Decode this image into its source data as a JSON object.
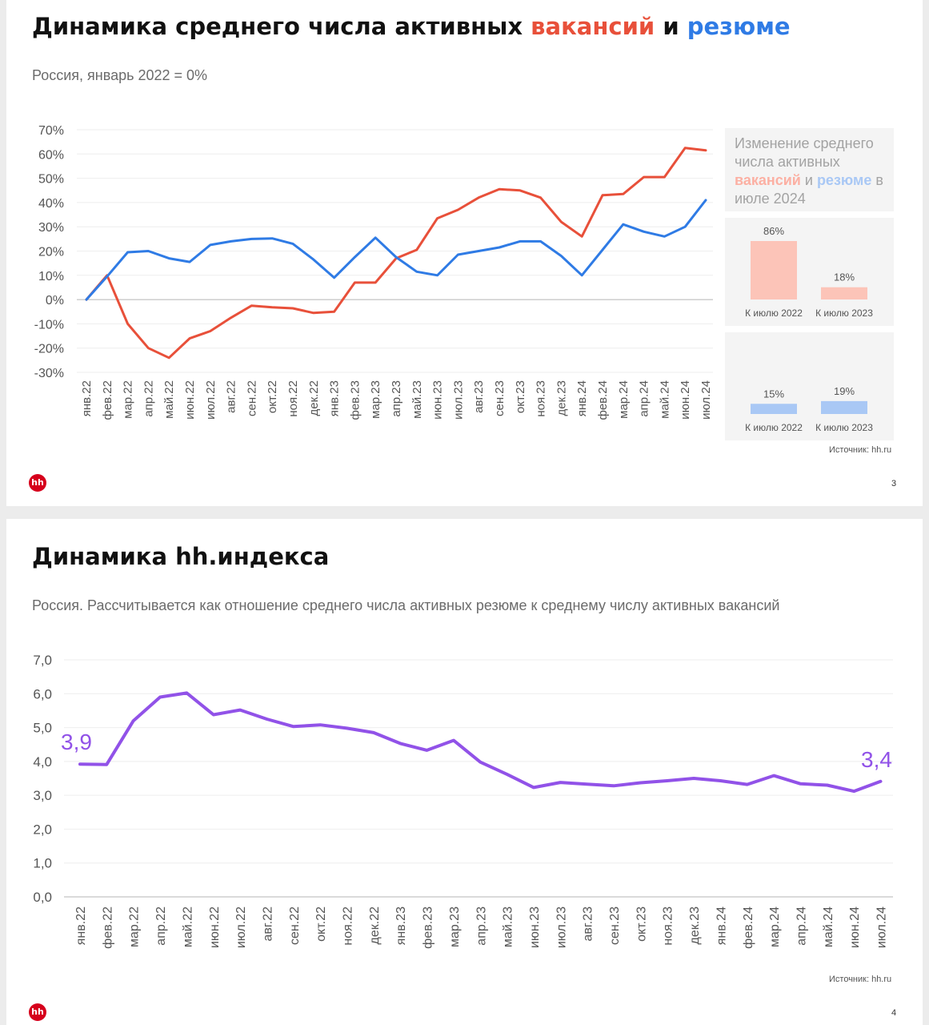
{
  "slide1": {
    "title_prefix": "Динамика среднего числа активных ",
    "title_vacancies": "вакансий",
    "title_and": " и ",
    "title_resumes": "резюме",
    "subtitle": "Россия, январь 2022 = 0%",
    "side_heading_line1": "Изменение среднего числа активных",
    "side_heading_vacancies": "вакансий",
    "side_heading_and": " и ",
    "side_heading_resumes": "резюме",
    "side_heading_line2": "в июле 2024",
    "source": "Источник: hh.ru",
    "page_number": "3",
    "logo": "hh"
  },
  "slide2": {
    "title": "Динамика hh.индекса",
    "subtitle": "Россия. Рассчитывается как отношение среднего числа активных резюме к среднему числу активных вакансий",
    "source": "Источник: hh.ru",
    "page_number": "4",
    "logo": "hh"
  },
  "colors": {
    "vacancies": "#e8503a",
    "resumes": "#2f7be5",
    "index": "#9152e8",
    "vacancies_light": "#fcc4b8",
    "resumes_light": "#a9c8f5"
  },
  "chart_data": [
    {
      "type": "line",
      "categories": [
        "янв.22",
        "фев.22",
        "мар.22",
        "апр.22",
        "май.22",
        "июн.22",
        "июл.22",
        "авг.22",
        "сен.22",
        "окт.22",
        "ноя.22",
        "дек.22",
        "янв.23",
        "фев.23",
        "мар.23",
        "апр.23",
        "май.23",
        "июн.23",
        "июл.23",
        "авг.23",
        "сен.23",
        "окт.23",
        "ноя.23",
        "дек.23",
        "янв.24",
        "фев.24",
        "мар.24",
        "апр.24",
        "май.24",
        "июн.24",
        "июл.24"
      ],
      "series": [
        {
          "name": "вакансий",
          "color": "#e8503a",
          "values": [
            0,
            10,
            -10,
            -20,
            -24,
            -16,
            -13,
            -7.5,
            -2.5,
            -3.2,
            -3.6,
            -5.5,
            -5,
            7,
            7,
            17,
            20.5,
            33.5,
            37,
            42,
            45.5,
            45,
            42,
            32,
            26,
            43,
            43.5,
            50.5,
            50.5,
            62.5,
            61.5
          ]
        },
        {
          "name": "резюме",
          "color": "#2f7be5",
          "values": [
            0,
            9.5,
            19.5,
            20,
            17,
            15.5,
            22.5,
            24,
            25,
            25.2,
            23,
            16.5,
            9,
            17.5,
            25.5,
            17.5,
            11.5,
            10,
            18.5,
            20,
            21.5,
            24,
            24,
            18,
            10,
            20.5,
            31,
            28,
            26,
            30,
            41
          ]
        }
      ],
      "y_tick_labels": [
        "70%",
        "60%",
        "50%",
        "40%",
        "30%",
        "20%",
        "10%",
        "0%",
        "-10%",
        "-20%",
        "-30%"
      ],
      "ylim": [
        -30,
        70
      ],
      "grid": true
    },
    {
      "type": "bar",
      "categories": [
        "К июлю 2022",
        "К июлю 2023"
      ],
      "series": [
        {
          "name": "вакансий",
          "values": [
            86,
            18
          ],
          "labels": [
            "86%",
            "18%"
          ]
        }
      ]
    },
    {
      "type": "bar",
      "categories": [
        "К июлю 2022",
        "К июлю 2023"
      ],
      "series": [
        {
          "name": "резюме",
          "values": [
            15,
            19
          ],
          "labels": [
            "15%",
            "19%"
          ]
        }
      ]
    },
    {
      "type": "line",
      "categories": [
        "янв.22",
        "фев.22",
        "мар.22",
        "апр.22",
        "май.22",
        "июн.22",
        "июл.22",
        "авг.22",
        "сен.22",
        "окт.22",
        "ноя.22",
        "дек.22",
        "янв.23",
        "фев.23",
        "мар.23",
        "апр.23",
        "май.23",
        "июн.23",
        "июл.23",
        "авг.23",
        "сен.23",
        "окт.23",
        "ноя.23",
        "дек.23",
        "янв.24",
        "фев.24",
        "мар.24",
        "апр.24",
        "май.24",
        "июн.24",
        "июл.24"
      ],
      "series": [
        {
          "values": [
            3.92,
            3.91,
            5.2,
            5.9,
            6.02,
            5.38,
            5.52,
            5.25,
            5.03,
            5.08,
            4.98,
            4.85,
            4.53,
            4.33,
            4.62,
            3.98,
            3.62,
            3.23,
            3.38,
            3.33,
            3.28,
            3.37,
            3.43,
            3.5,
            3.43,
            3.32,
            3.58,
            3.34,
            3.3,
            3.12,
            3.41
          ]
        }
      ],
      "y_tick_labels": [
        "7,0",
        "6,0",
        "5,0",
        "4,0",
        "3,0",
        "2,0",
        "1,0",
        "0,0"
      ],
      "ylim": [
        0,
        7
      ],
      "annotations": {
        "first": "3,9",
        "last": "3,4"
      },
      "grid": true
    }
  ]
}
